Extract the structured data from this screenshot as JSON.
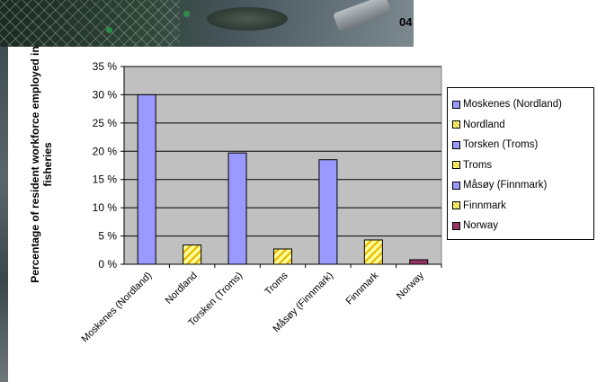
{
  "header": {
    "title_fragment": "04"
  },
  "chart_data": {
    "type": "bar",
    "title": "",
    "xlabel": "",
    "ylabel": "Percentage of resident workforce employed in fisheries",
    "ylabel_lines": [
      "Percentage of resident workforce employed in",
      "fisheries"
    ],
    "categories": [
      "Moskenes (Nordland)",
      "Nordland",
      "Torsken (Troms)",
      "Troms",
      "Måsøy (Finnmark)",
      "Finnmark",
      "Norway"
    ],
    "values": [
      30,
      3.4,
      19.7,
      2.7,
      18.5,
      4.3,
      0.8
    ],
    "series": [
      {
        "name": "Moskenes (Nordland)",
        "color": "#9999ff",
        "pattern": "solid"
      },
      {
        "name": "Nordland",
        "color": "#ffff99",
        "pattern": "stripes"
      },
      {
        "name": "Torsken (Troms)",
        "color": "#9999ff",
        "pattern": "solid"
      },
      {
        "name": "Troms",
        "color": "#ffff99",
        "pattern": "stripes"
      },
      {
        "name": "Måsøy (Finnmark)",
        "color": "#9999ff",
        "pattern": "solid"
      },
      {
        "name": "Finnmark",
        "color": "#ffff99",
        "pattern": "stripes"
      },
      {
        "name": "Norway",
        "color": "#993366",
        "pattern": "solid"
      }
    ],
    "ylim": [
      0,
      35
    ],
    "yticks": [
      0,
      5,
      10,
      15,
      20,
      25,
      30,
      35
    ],
    "ytick_labels": [
      "0 %",
      "5 %",
      "10 %",
      "15 %",
      "20 %",
      "25 %",
      "30 %",
      "35 %"
    ],
    "plot_background": "#c0c0c0",
    "stripe_color": "#e6b800",
    "grid": true,
    "legend": "right"
  }
}
